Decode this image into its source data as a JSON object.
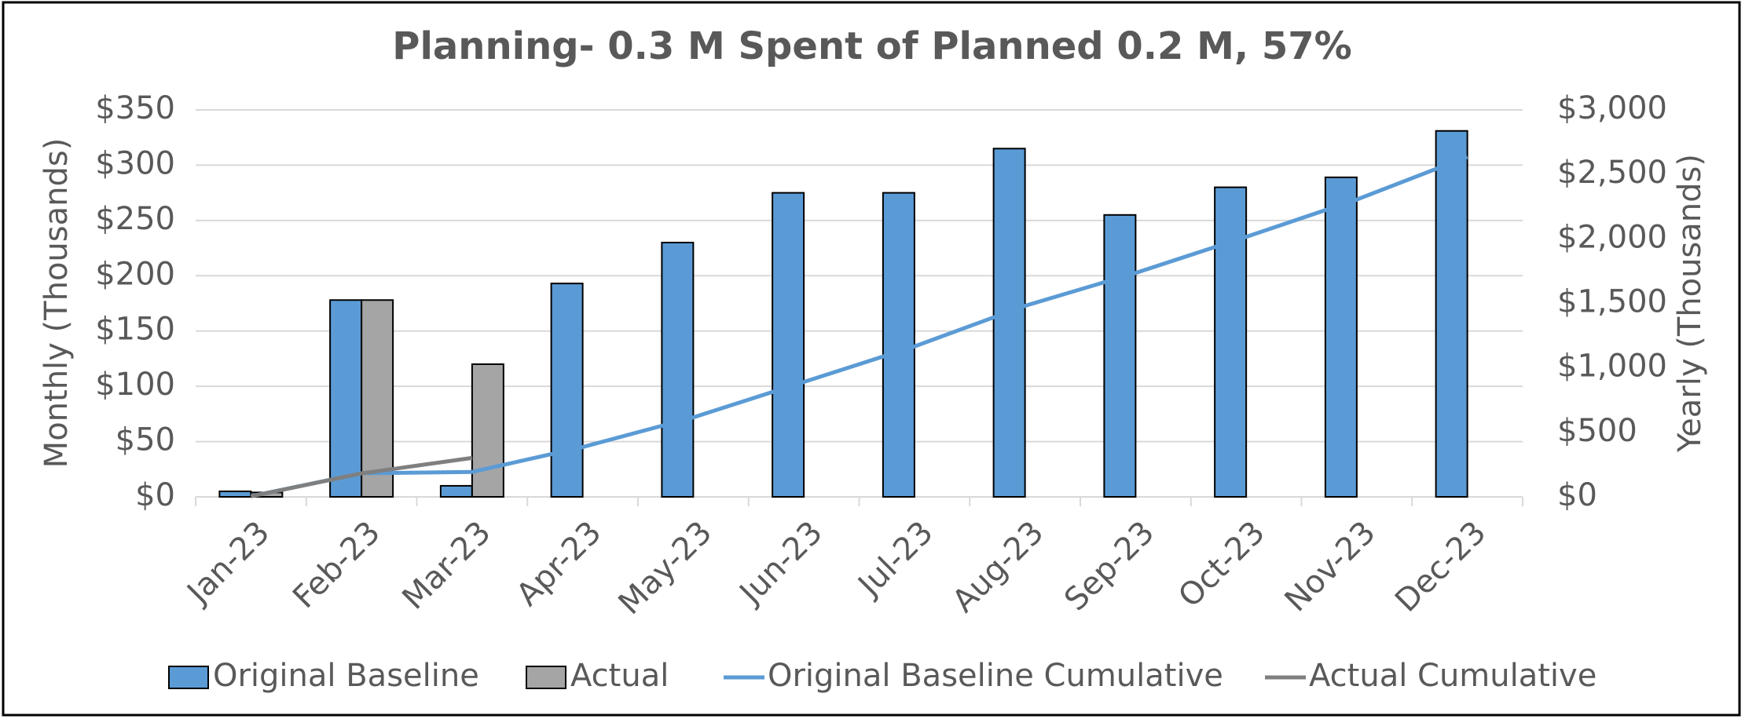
{
  "chart_data": {
    "type": "bar",
    "title": "Planning- 0.3 M Spent of Planned 0.2 M, 57%",
    "ylabel": "Monthly (Thousands)",
    "y2label": "Yearly (Thousands)",
    "categories": [
      "Jan-23",
      "Feb-23",
      "Mar-23",
      "Apr-23",
      "May-23",
      "Jun-23",
      "Jul-23",
      "Aug-23",
      "Sep-23",
      "Oct-23",
      "Nov-23",
      "Dec-23"
    ],
    "series": [
      {
        "name": "Original Baseline",
        "type": "bar",
        "color": "#5b9bd5",
        "values": [
          5,
          178,
          10,
          193,
          230,
          275,
          275,
          315,
          255,
          280,
          289,
          331
        ]
      },
      {
        "name": "Actual",
        "type": "bar",
        "color": "#a5a5a5",
        "values": [
          4,
          178,
          120,
          null,
          null,
          null,
          null,
          null,
          null,
          null,
          null,
          null
        ]
      },
      {
        "name": "Original Baseline Cumulative",
        "type": "line",
        "axis": "y2",
        "color": "#5b9bd5",
        "values": [
          5,
          183,
          193,
          386,
          616,
          891,
          1166,
          1481,
          1736,
          2016,
          2305,
          2636
        ]
      },
      {
        "name": "Actual Cumulative",
        "type": "line",
        "axis": "y2",
        "color": "#7f7f7f",
        "values": [
          4,
          182,
          302,
          null,
          null,
          null,
          null,
          null,
          null,
          null,
          null,
          null
        ]
      }
    ],
    "ylim": [
      0,
      350
    ],
    "yticks": [
      {
        "value": 0,
        "label": "$0"
      },
      {
        "value": 50,
        "label": "$50"
      },
      {
        "value": 100,
        "label": "$100"
      },
      {
        "value": 150,
        "label": "$150"
      },
      {
        "value": 200,
        "label": "$200"
      },
      {
        "value": 250,
        "label": "$250"
      },
      {
        "value": 300,
        "label": "$300"
      },
      {
        "value": 350,
        "label": "$350"
      }
    ],
    "y2lim": [
      0,
      3000
    ],
    "y2ticks": [
      {
        "value": 0,
        "label": "$0"
      },
      {
        "value": 500,
        "label": "$500"
      },
      {
        "value": 1000,
        "label": "$1,000"
      },
      {
        "value": 1500,
        "label": "$1,500"
      },
      {
        "value": 2000,
        "label": "$2,000"
      },
      {
        "value": 2500,
        "label": "$2,500"
      },
      {
        "value": 3000,
        "label": "$3,000"
      }
    ],
    "grid": true,
    "legend": "bottom"
  }
}
